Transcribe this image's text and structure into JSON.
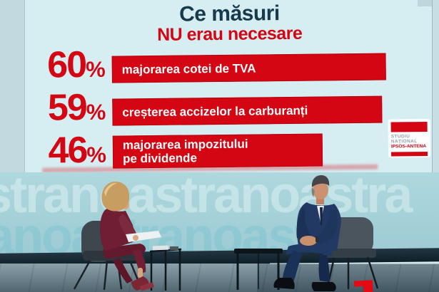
{
  "chart_data": {
    "type": "bar",
    "orientation": "horizontal",
    "title": "Ce măsuri NU erau necesare",
    "title_line1": "Ce măsuri",
    "title_line2": "NU erau necesare",
    "categories": [
      "majorarea cotei de TVA",
      "creșterea accizelor la carburanți",
      "majorarea impozitului pe dividende"
    ],
    "values": [
      60,
      59,
      46
    ],
    "unit": "%",
    "bar_color": "#d40613",
    "value_label_color": "#d40613",
    "bar_text_color": "#ffffff",
    "axis": "none",
    "legend": "none"
  },
  "overlay": {
    "rows": [
      {
        "label_lines": [
          "majorarea cotei de TVA"
        ]
      },
      {
        "label_lines": [
          "creșterea accizelor la carburanți"
        ]
      },
      {
        "label_lines": [
          "majorarea impozitului",
          "pe dividende"
        ]
      }
    ]
  },
  "badge": {
    "line1": "STUDIU",
    "line2": "NAȚIONAL",
    "line3": "IPSOS-ANTENA"
  },
  "backdrop": {
    "watermark_text": "astranoastranoastra"
  },
  "icons": {
    "channel_logo": "antena-1-logo"
  },
  "colors": {
    "accent_red": "#d40613",
    "title_navy": "#183a4d",
    "panel_cyan": "#d6edf2",
    "wall_teal": "#a6d3da"
  }
}
